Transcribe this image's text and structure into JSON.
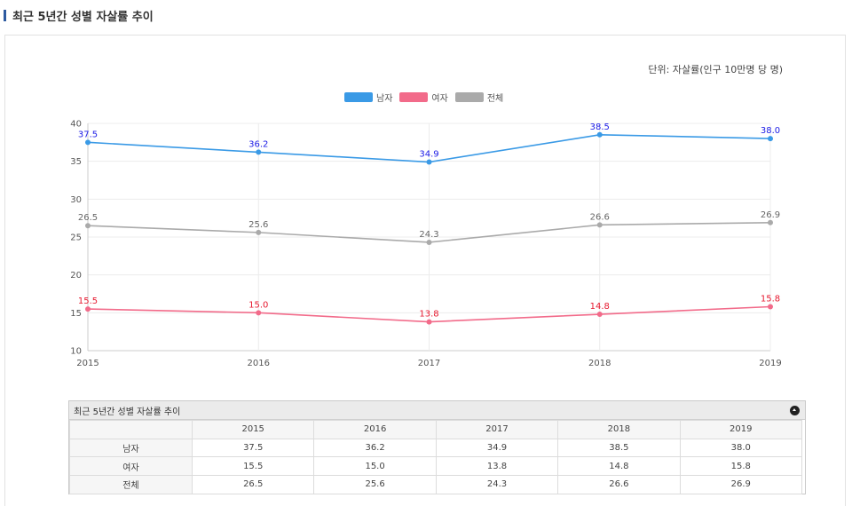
{
  "page": {
    "title": "최근 5년간 성별 자살률 추이"
  },
  "chart_data": {
    "type": "line",
    "title": "최근 5년간 성별 자살률 추이",
    "unit": "단위: 자살률(인구 10만명 당 명)",
    "x": [
      "2015",
      "2016",
      "2017",
      "2018",
      "2019"
    ],
    "ylim": [
      10,
      40
    ],
    "yticks": [
      10,
      15,
      20,
      25,
      30,
      35,
      40
    ],
    "grid": true,
    "legend_position": "top-center",
    "series": [
      {
        "name": "남자",
        "color": "#3a9ae6",
        "label_color": "#1a1ae6",
        "values": [
          37.5,
          36.2,
          34.9,
          38.5,
          38.0
        ],
        "labels": [
          "37.5",
          "36.2",
          "34.9",
          "38.5",
          "38.0"
        ]
      },
      {
        "name": "여자",
        "color": "#f26b8a",
        "label_color": "#e6192f",
        "values": [
          15.5,
          15.0,
          13.8,
          14.8,
          15.8
        ],
        "labels": [
          "15.5",
          "15.0",
          "13.8",
          "14.8",
          "15.8"
        ]
      },
      {
        "name": "전체",
        "color": "#aaaaaa",
        "label_color": "#666666",
        "values": [
          26.5,
          25.6,
          24.3,
          26.6,
          26.9
        ],
        "labels": [
          "26.5",
          "25.6",
          "24.3",
          "26.6",
          "26.9"
        ]
      }
    ]
  },
  "table": {
    "title": "최근 5년간 성별 자살률 추이",
    "columns": [
      "2015",
      "2016",
      "2017",
      "2018",
      "2019"
    ],
    "rows": [
      {
        "label": "남자",
        "cells": [
          "37.5",
          "36.2",
          "34.9",
          "38.5",
          "38.0"
        ]
      },
      {
        "label": "여자",
        "cells": [
          "15.5",
          "15.0",
          "13.8",
          "14.8",
          "15.8"
        ]
      },
      {
        "label": "전체",
        "cells": [
          "26.5",
          "25.6",
          "24.3",
          "26.6",
          "26.9"
        ]
      }
    ]
  }
}
